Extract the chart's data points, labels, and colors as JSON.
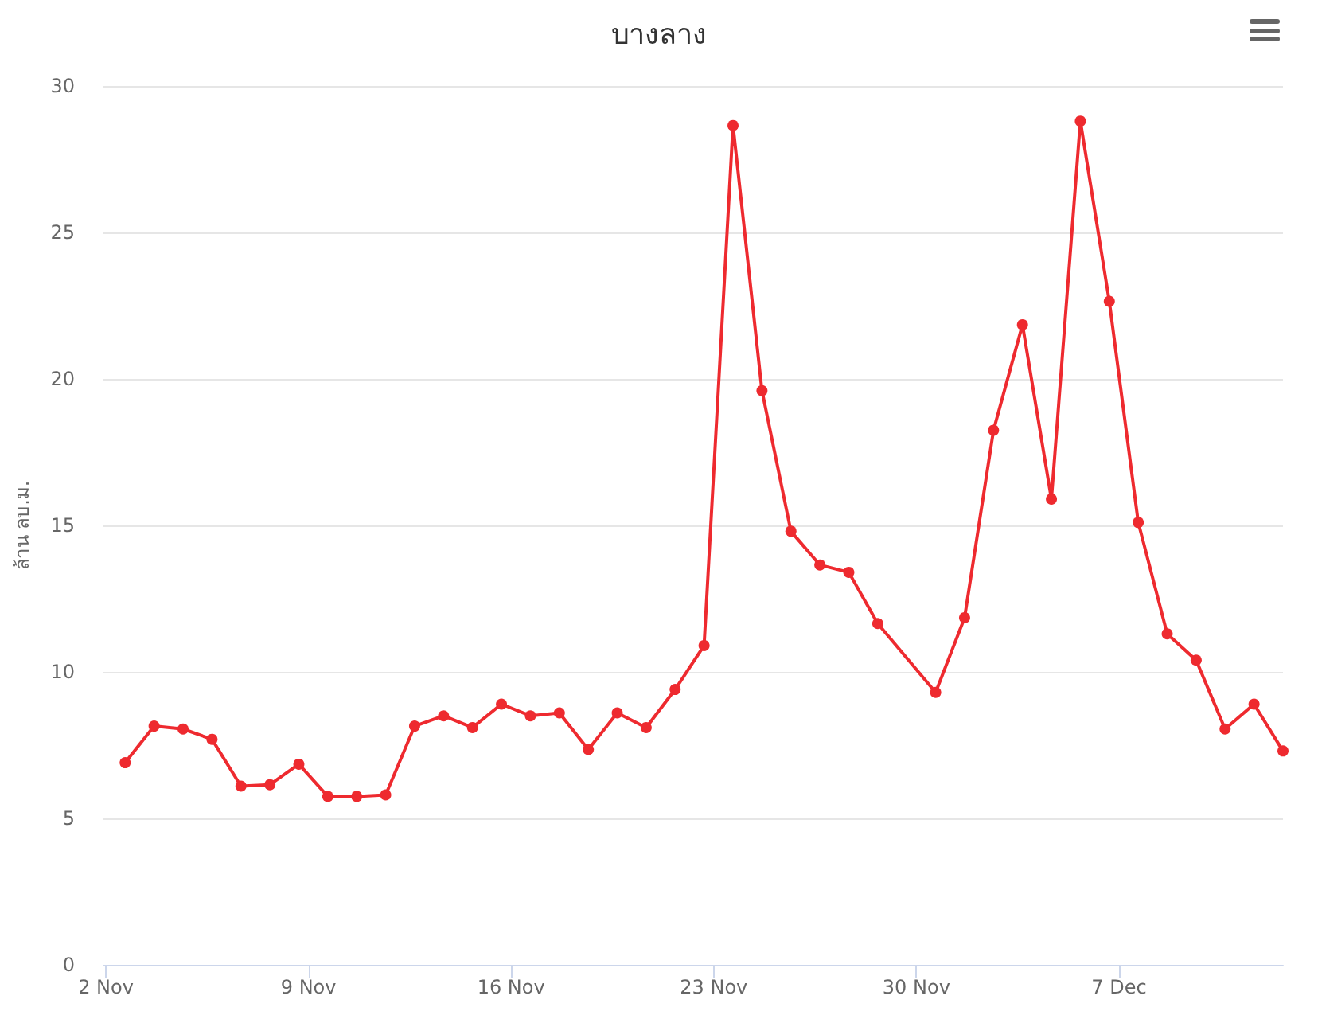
{
  "chart_data": {
    "type": "line",
    "title": "บางลาง",
    "ylabel": "ล้าน ลบ.ม.",
    "x": [
      "--11-02T16:00",
      "--11-03T16:00",
      "--11-04T16:00",
      "--11-05T16:00",
      "--11-06T16:00",
      "--11-07T16:00",
      "--11-08T16:00",
      "--11-09T16:00",
      "--11-10T16:00",
      "--11-11T16:00",
      "--11-12T16:00",
      "--11-13T16:00",
      "--11-14T16:00",
      "--11-15T16:00",
      "--11-16T16:00",
      "--11-17T16:00",
      "--11-18T16:00",
      "--11-19T16:00",
      "--11-20T16:00",
      "--11-21T16:00",
      "--11-22T16:00",
      "--11-23T16:00",
      "--11-24T16:00",
      "--11-25T16:00",
      "--11-26T16:00",
      "--11-27T16:00",
      "--11-28T16:00",
      "--11-30T16:00",
      "--12-01T16:00",
      "--12-02T16:00",
      "--12-03T16:00",
      "--12-04T16:00",
      "--12-05T16:00",
      "--12-06T16:00",
      "--12-07T16:00",
      "--12-08T16:00",
      "--12-09T16:00",
      "--12-10T16:00",
      "--12-11T16:00",
      "--12-12T16:00"
    ],
    "series": [
      {
        "color": "#ee2a2f",
        "values": [
          6.9,
          8.15,
          8.05,
          7.7,
          6.1,
          6.15,
          6.85,
          5.75,
          5.75,
          5.8,
          8.15,
          8.5,
          8.1,
          8.9,
          8.5,
          8.6,
          7.35,
          8.6,
          8.1,
          9.4,
          10.9,
          28.65,
          19.6,
          14.8,
          13.65,
          13.4,
          11.65,
          9.3,
          11.85,
          18.25,
          21.85,
          15.9,
          28.8,
          22.65,
          15.1,
          11.3,
          10.4,
          8.05,
          8.9,
          7.3
        ]
      }
    ],
    "xlim": [
      "--11-01T22:00",
      "--12-12T16:00"
    ],
    "xticks": [
      {
        "value": "--11-02",
        "label": "2 Nov"
      },
      {
        "value": "--11-09",
        "label": "9 Nov"
      },
      {
        "value": "--11-16",
        "label": "16 Nov"
      },
      {
        "value": "--11-23",
        "label": "23 Nov"
      },
      {
        "value": "--11-30",
        "label": "30 Nov"
      },
      {
        "value": "--12-07",
        "label": "7 Dec"
      }
    ],
    "ylim": [
      0,
      30
    ],
    "yticks": [
      0,
      5,
      10,
      15,
      20,
      25,
      30
    ],
    "grid": "y",
    "marker": "circle",
    "line_style": "solid"
  }
}
